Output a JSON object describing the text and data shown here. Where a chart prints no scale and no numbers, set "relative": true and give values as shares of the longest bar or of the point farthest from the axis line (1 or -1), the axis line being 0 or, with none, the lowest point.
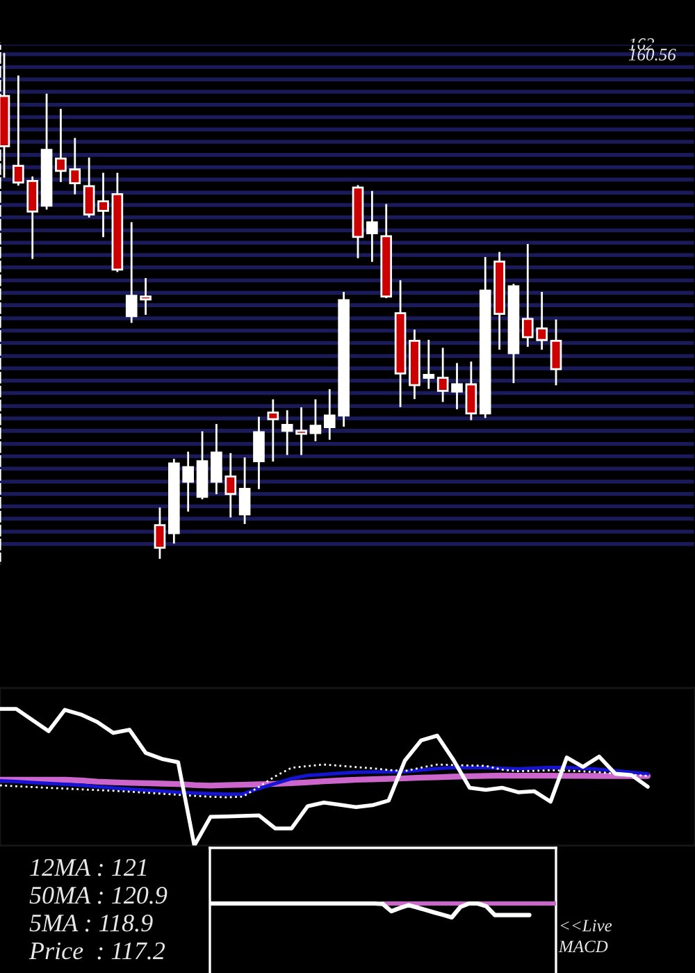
{
  "chart_data": [
    {
      "type": "candlestick",
      "grid": "y",
      "ylim": [
        90.5,
        162
      ],
      "yticks": [
        {
          "value": 162,
          "label": "162"
        },
        {
          "value": 160.56,
          "label": "160.56"
        },
        {
          "value": 158.8,
          "label": null
        },
        {
          "value": 157.1,
          "label": null
        },
        {
          "value": 155.4,
          "label": null
        },
        {
          "value": 153.6,
          "label": null
        },
        {
          "value": 151.9,
          "label": null
        },
        {
          "value": 150.2,
          "label": null
        },
        {
          "value": 148.5,
          "label": null
        },
        {
          "value": 146.7,
          "label": null
        },
        {
          "value": 145.0,
          "label": null
        },
        {
          "value": 143.3,
          "label": null
        },
        {
          "value": 141.5,
          "label": null
        },
        {
          "value": 139.8,
          "label": null
        },
        {
          "value": 138.1,
          "label": null
        },
        {
          "value": 136.3,
          "label": null
        },
        {
          "value": 134.6,
          "label": null
        },
        {
          "value": 132.9,
          "label": null
        },
        {
          "value": 131.2,
          "label": null
        },
        {
          "value": 129.4,
          "label": null
        },
        {
          "value": 127.7,
          "label": null
        },
        {
          "value": 126.0,
          "label": null
        },
        {
          "value": 124.2,
          "label": null
        },
        {
          "value": 122.5,
          "label": null
        },
        {
          "value": 120.8,
          "label": null
        },
        {
          "value": 119.0,
          "label": null
        },
        {
          "value": 117.3,
          "label": null
        },
        {
          "value": 115.6,
          "label": null
        },
        {
          "value": 113.9,
          "label": null
        },
        {
          "value": 112.1,
          "label": null
        },
        {
          "value": 110.4,
          "label": null
        },
        {
          "value": 108.7,
          "label": null
        },
        {
          "value": 106.9,
          "label": null
        },
        {
          "value": 105.2,
          "label": null
        },
        {
          "value": 103.5,
          "label": null
        },
        {
          "value": 101.7,
          "label": null
        },
        {
          "value": 100.0,
          "label": null
        },
        {
          "value": 98.3,
          "label": null
        },
        {
          "value": 96.6,
          "label": null
        },
        {
          "value": 94.8,
          "label": null
        },
        {
          "value": 93.1,
          "label": null
        }
      ],
      "categories": [
        null,
        null,
        null,
        null,
        null,
        null,
        null,
        null,
        null,
        null,
        null,
        null,
        null,
        null,
        null,
        null,
        null,
        null,
        null,
        null,
        null,
        null,
        null,
        null,
        null,
        null,
        null,
        null,
        null,
        null,
        null,
        null,
        null,
        null,
        null,
        null,
        null,
        null,
        null,
        null
      ],
      "ohlc": [
        [
          154.8,
          160.6,
          143.7,
          147.9
        ],
        [
          145.2,
          157.5,
          142.6,
          142.9
        ],
        [
          143.1,
          143.6,
          132.5,
          138.9
        ],
        [
          139.7,
          155.0,
          139.3,
          147.4
        ],
        [
          146.2,
          152.9,
          143.1,
          144.5
        ],
        [
          144.7,
          148.9,
          141.4,
          142.8
        ],
        [
          142.4,
          146.2,
          138.2,
          138.5
        ],
        [
          140.3,
          144.1,
          135.5,
          139.0
        ],
        [
          141.3,
          144.1,
          130.7,
          130.9
        ],
        [
          124.5,
          137.3,
          123.7,
          127.3
        ],
        [
          127.2,
          129.6,
          124.8,
          126.8
        ],
        [
          95.7,
          98.0,
          91.2,
          92.6
        ],
        [
          94.6,
          104.7,
          93.3,
          104.2
        ],
        [
          101.7,
          105.7,
          97.7,
          103.7
        ],
        [
          99.6,
          108.5,
          99.4,
          104.5
        ],
        [
          101.7,
          109.5,
          100.1,
          105.7
        ],
        [
          102.4,
          105.5,
          96.9,
          100.0
        ],
        [
          97.2,
          104.9,
          96.0,
          100.7
        ],
        [
          104.5,
          110.5,
          100.8,
          108.5
        ],
        [
          111.2,
          112.9,
          104.6,
          110.3
        ],
        [
          108.7,
          111.4,
          105.5,
          109.5
        ],
        [
          108.7,
          111.8,
          105.5,
          108.3
        ],
        [
          108.4,
          112.9,
          107.4,
          109.4
        ],
        [
          109.2,
          114.3,
          107.6,
          110.8
        ],
        [
          110.8,
          127.7,
          109.4,
          126.7
        ],
        [
          142.2,
          142.4,
          132.6,
          135.4
        ],
        [
          135.9,
          141.6,
          132.1,
          137.4
        ],
        [
          135.5,
          139.8,
          127.1,
          127.2
        ],
        [
          124.9,
          129.3,
          112.1,
          116.6
        ],
        [
          121.1,
          122.5,
          113.2,
          115.0
        ],
        [
          116.0,
          121.1,
          114.6,
          116.4
        ],
        [
          116.0,
          120.0,
          112.8,
          114.2
        ],
        [
          114.1,
          117.9,
          111.8,
          115.1
        ],
        [
          115.1,
          118.1,
          110.3,
          111.1
        ],
        [
          111.1,
          132.5,
          110.6,
          128.0
        ],
        [
          132.0,
          133.2,
          120.0,
          124.8
        ],
        [
          119.4,
          128.8,
          115.4,
          128.6
        ],
        [
          124.1,
          134.3,
          120.4,
          121.6
        ],
        [
          122.8,
          127.7,
          120.0,
          121.2
        ],
        [
          121.1,
          123.9,
          115.1,
          117.2
        ]
      ],
      "colors": [
        "#cc0000",
        "#cc0000",
        "#cc0000",
        "#ffffff",
        "#cc0000",
        "#cc0000",
        "#cc0000",
        "#cc0000",
        "#cc0000",
        "#ffffff",
        "#cc0000",
        "#cc0000",
        "#ffffff",
        "#ffffff",
        "#ffffff",
        "#ffffff",
        "#cc0000",
        "#ffffff",
        "#ffffff",
        "#cc0000",
        "#ffffff",
        "#cc0000",
        "#ffffff",
        "#ffffff",
        "#ffffff",
        "#cc0000",
        "#ffffff",
        "#cc0000",
        "#cc0000",
        "#cc0000",
        "#ffffff",
        "#cc0000",
        "#ffffff",
        "#cc0000",
        "#ffffff",
        "#cc0000",
        "#ffffff",
        "#cc0000",
        "#cc0000",
        "#cc0000"
      ]
    },
    {
      "type": "line",
      "relative": true,
      "categories": [
        null,
        null,
        null,
        null,
        null,
        null,
        null,
        null,
        null,
        null,
        null,
        null,
        null,
        null,
        null,
        null,
        null,
        null,
        null,
        null,
        null,
        null,
        null,
        null,
        null,
        null,
        null,
        null,
        null,
        null,
        null,
        null,
        null,
        null,
        null,
        null,
        null,
        null,
        null,
        null,
        null
      ],
      "series": [
        {
          "color": "#cc66cc",
          "values": [
            0.481,
            0.481,
            0.481,
            0.481,
            0.481,
            0.476,
            0.468,
            0.463,
            0.459,
            0.456,
            0.453,
            0.45,
            0.442,
            0.439,
            0.442,
            0.445,
            0.448,
            0.451,
            0.456,
            0.463,
            0.47,
            0.476,
            0.482,
            0.485,
            0.489,
            0.492,
            0.497,
            0.5,
            0.504,
            0.507,
            0.51,
            0.512,
            0.511,
            0.511,
            0.511,
            0.51,
            0.51,
            0.509,
            0.509,
            0.509,
            0.509
          ]
        },
        {
          "color": "#1414d2",
          "values": [
            0.474,
            0.468,
            0.461,
            0.455,
            0.448,
            0.442,
            0.431,
            0.421,
            0.413,
            0.405,
            0.397,
            0.39,
            0.385,
            0.38,
            0.376,
            0.377,
            0.418,
            0.454,
            0.49,
            0.513,
            0.521,
            0.529,
            0.536,
            0.538,
            0.54,
            0.541,
            0.552,
            0.564,
            0.57,
            0.57,
            0.57,
            0.565,
            0.561,
            0.566,
            0.571,
            0.57,
            0.565,
            0.558,
            0.547,
            0.536,
            0.525
          ]
        },
        {
          "color": "#ffffff",
          "line_style": "dotted",
          "values": [
            0.44,
            0.434,
            0.428,
            0.422,
            0.417,
            0.411,
            0.406,
            0.401,
            0.394,
            0.387,
            0.379,
            0.371,
            0.364,
            0.357,
            0.353,
            0.358,
            0.43,
            0.507,
            0.569,
            0.581,
            0.593,
            0.584,
            0.574,
            0.565,
            0.553,
            0.545,
            0.57,
            0.593,
            0.589,
            0.586,
            0.583,
            0.555,
            0.544,
            0.547,
            0.551,
            0.548,
            0.543,
            0.536,
            0.527,
            0.518,
            0.509
          ]
        },
        {
          "color": "#ffffff",
          "values": [
            1.0,
            1.0,
            0.919,
            0.837,
            0.993,
            0.959,
            0.905,
            0.824,
            0.847,
            0.678,
            0.634,
            0.61,
            0.0,
            0.21,
            0.213,
            0.217,
            0.22,
            0.125,
            0.125,
            0.288,
            0.315,
            0.298,
            0.281,
            0.295,
            0.329,
            0.621,
            0.769,
            0.804,
            0.627,
            0.423,
            0.407,
            0.423,
            0.39,
            0.397,
            0.321,
            0.644,
            0.576,
            0.651,
            0.525,
            0.515,
            0.43
          ]
        }
      ],
      "annotations": [
        "12MA : 121",
        "50MA : 120.9",
        "5MA : 118.9",
        "Price  : 117.2"
      ]
    },
    {
      "type": "line",
      "relative": true,
      "categories": [
        null,
        null,
        null,
        null,
        null,
        null,
        null,
        null,
        null,
        null,
        null,
        null,
        null,
        null,
        null,
        null,
        null,
        null,
        null,
        null,
        null,
        null,
        null,
        null,
        null,
        null,
        null,
        null,
        null,
        null,
        null,
        null,
        null,
        null,
        null,
        null,
        null,
        null,
        null,
        null,
        null
      ],
      "series": [
        {
          "color": "#cc66cc",
          "values": [
            null,
            null,
            null,
            null,
            null,
            null,
            null,
            null,
            null,
            null,
            null,
            null,
            null,
            null,
            null,
            null,
            null,
            null,
            null,
            null,
            1.0,
            1.0,
            1.0,
            1.0,
            1.0,
            1.0,
            1.0,
            1.0,
            1.0,
            1.0,
            1.0,
            1.0,
            1.0,
            1.0,
            1.0,
            1.0,
            1.0,
            1.0,
            1.0,
            1.0,
            1.0
          ]
        },
        {
          "color": "#ffffff",
          "values": [
            1.0,
            1.0,
            1.0,
            1.0,
            1.0,
            1.0,
            1.0,
            1.0,
            1.0,
            1.0,
            1.0,
            1.0,
            1.0,
            1.0,
            1.0,
            1.0,
            1.0,
            1.0,
            1.0,
            1.0,
            0.97,
            0.44,
            0.68,
            0.88,
            0.71,
            0.53,
            0.35,
            0.18,
            0.0,
            0.75,
            1.0,
            1.0,
            0.81,
            0.17,
            0.17,
            0.17,
            0.17,
            0.17,
            null,
            null,
            null
          ]
        }
      ],
      "annotations": [
        "<<Live",
        "MACD"
      ]
    }
  ]
}
